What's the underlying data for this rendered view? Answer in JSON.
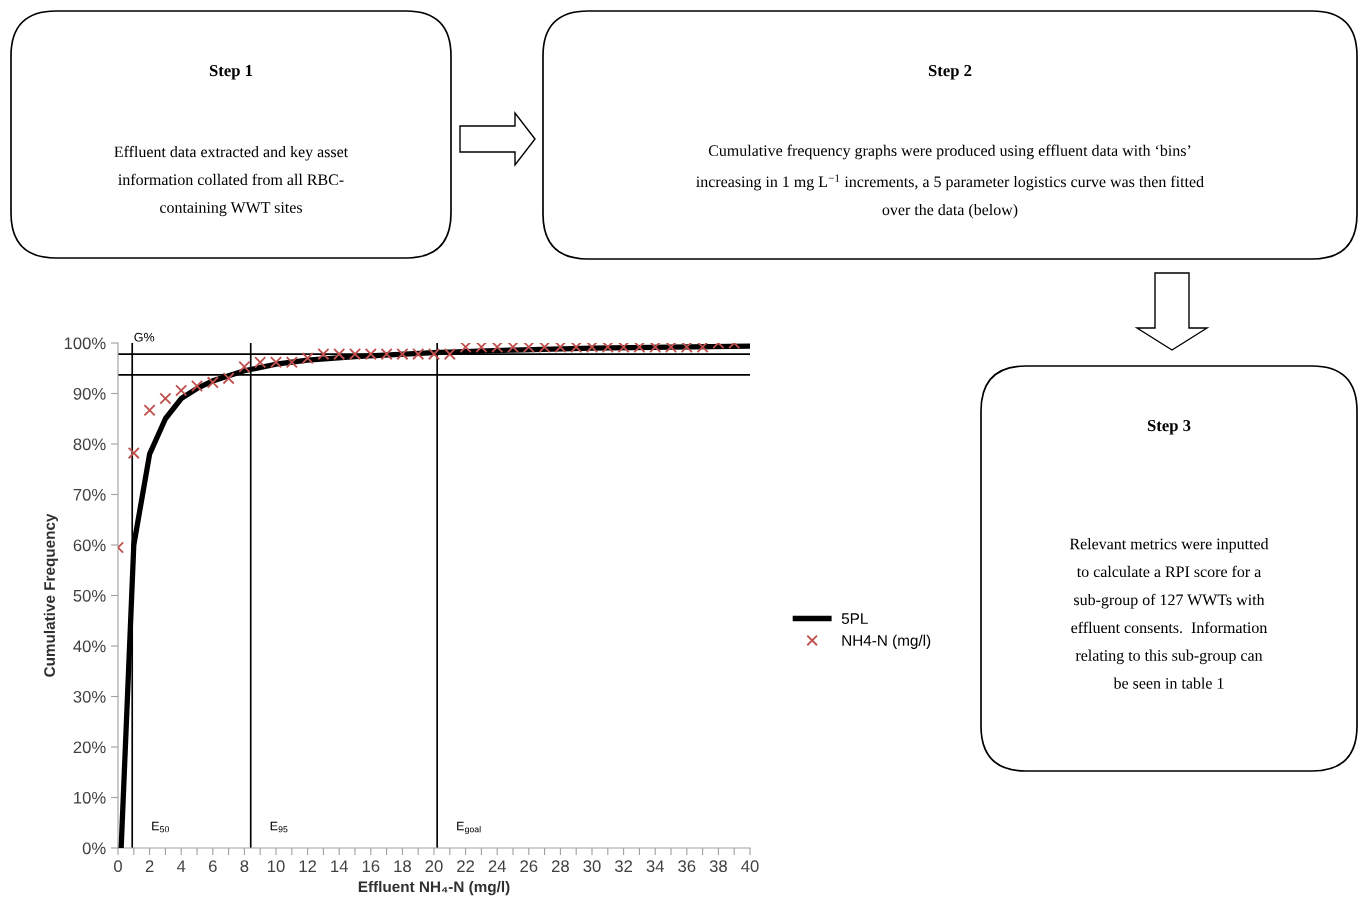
{
  "chart_data": [
    {
      "type": "other",
      "title": "Step 1",
      "annotations": [
        "Effluent data extracted and key asset\ninformation collated from all RBC-\ncontaining WWT sites"
      ]
    },
    {
      "type": "other",
      "title": "Step 2",
      "annotations": [
        "Cumulative frequency graphs were produced using effluent data with ‘bins’\nincreasing in 1 mg L$^{−1}$ increments, a 5 parameter logistics curve was then fitted\nover the data (below)"
      ]
    },
    {
      "type": "line",
      "xlabel": "Effluent NH₄-N (mg/l)",
      "ylabel": "Cumulative Frequency",
      "xlim": [
        0,
        40
      ],
      "ylim": [
        0,
        100
      ],
      "xticks": [
        0,
        {
          "value": 1,
          "label": null
        },
        2,
        {
          "value": 3,
          "label": null
        },
        4,
        {
          "value": 5,
          "label": null
        },
        6,
        {
          "value": 7,
          "label": null
        },
        8,
        {
          "value": 9,
          "label": null
        },
        10,
        {
          "value": 11,
          "label": null
        },
        12,
        {
          "value": 13,
          "label": null
        },
        14,
        {
          "value": 15,
          "label": null
        },
        16,
        {
          "value": 17,
          "label": null
        },
        18,
        {
          "value": 19,
          "label": null
        },
        20,
        {
          "value": 21,
          "label": null
        },
        22,
        {
          "value": 23,
          "label": null
        },
        24,
        {
          "value": 25,
          "label": null
        },
        26,
        {
          "value": 27,
          "label": null
        },
        28,
        {
          "value": 29,
          "label": null
        },
        30,
        {
          "value": 31,
          "label": null
        },
        32,
        {
          "value": 33,
          "label": null
        },
        34,
        {
          "value": 35,
          "label": null
        },
        36,
        {
          "value": 37,
          "label": null
        },
        38,
        {
          "value": 39,
          "label": null
        },
        40
      ],
      "yticks": [
        {
          "value": 0,
          "label": "0%"
        },
        {
          "value": 10,
          "label": "10%"
        },
        {
          "value": 20,
          "label": "20%"
        },
        {
          "value": 30,
          "label": "30%"
        },
        {
          "value": 40,
          "label": "40%"
        },
        {
          "value": 50,
          "label": "50%"
        },
        {
          "value": 60,
          "label": "60%"
        },
        {
          "value": 70,
          "label": "70%"
        },
        {
          "value": 80,
          "label": "80%"
        },
        {
          "value": 90,
          "label": "90%"
        },
        {
          "value": 100,
          "label": "100%"
        }
      ],
      "grid": false,
      "legend": "right",
      "series": [
        {
          "name": "5PL",
          "type": "line",
          "color": "#000000",
          "marker": "none",
          "line_style": "solid",
          "x": [
            0.2,
            1,
            2,
            3,
            4,
            5,
            6,
            7,
            8,
            10,
            12,
            15,
            20,
            25,
            30,
            35,
            40
          ],
          "values": [
            0,
            60,
            78,
            85,
            89,
            91,
            92.5,
            93.5,
            94.5,
            95.8,
            96.6,
            97.3,
            98.1,
            98.6,
            99,
            99.2,
            99.4
          ]
        },
        {
          "name": "NH4-N (mg/l)",
          "type": "scatter",
          "color": "#c0504d",
          "marker": "cross",
          "x": [
            0,
            1,
            2,
            3,
            4,
            5,
            6,
            7,
            8,
            9,
            10,
            11,
            12,
            13,
            14,
            15,
            16,
            17,
            18,
            19,
            20,
            21,
            22,
            23,
            24,
            25,
            26,
            27,
            28,
            29,
            30,
            31,
            32,
            33,
            34,
            35,
            36,
            37,
            38,
            39
          ],
          "values": [
            59.5,
            78.2,
            86.7,
            89,
            90.6,
            91.5,
            92.2,
            93,
            95.3,
            96.2,
            96.2,
            96.2,
            97,
            97.8,
            97.8,
            97.8,
            97.8,
            97.8,
            97.8,
            97.8,
            97.8,
            97.8,
            99.2,
            99.2,
            99.2,
            99.2,
            99.2,
            99.2,
            99.2,
            99.2,
            99.2,
            99.2,
            99.2,
            99.2,
            99.2,
            99.2,
            99.2,
            99.2,
            100,
            100
          ]
        }
      ],
      "ref_lines": [
        {
          "axis": "y",
          "value": 97.8,
          "label": "G%",
          "color": "#000000"
        },
        {
          "axis": "y",
          "value": 93.7,
          "label": null,
          "color": "#000000"
        },
        {
          "axis": "x",
          "value": 0.9,
          "label": "E$_{50}$",
          "color": "#000000"
        },
        {
          "axis": "x",
          "value": 8.4,
          "label": "E$_{95}$",
          "color": "#000000"
        },
        {
          "axis": "x",
          "value": 20.2,
          "label": "E$_{goal}$",
          "color": "#000000"
        }
      ]
    },
    {
      "type": "other",
      "title": "Step 3",
      "annotations": [
        "Relevant metrics were inputted\nto calculate a RPI score for a\nsub-group of 127 WWTs with\neffluent consents.  Information\nrelating to this sub-group can\nbe seen in table 1"
      ]
    }
  ]
}
